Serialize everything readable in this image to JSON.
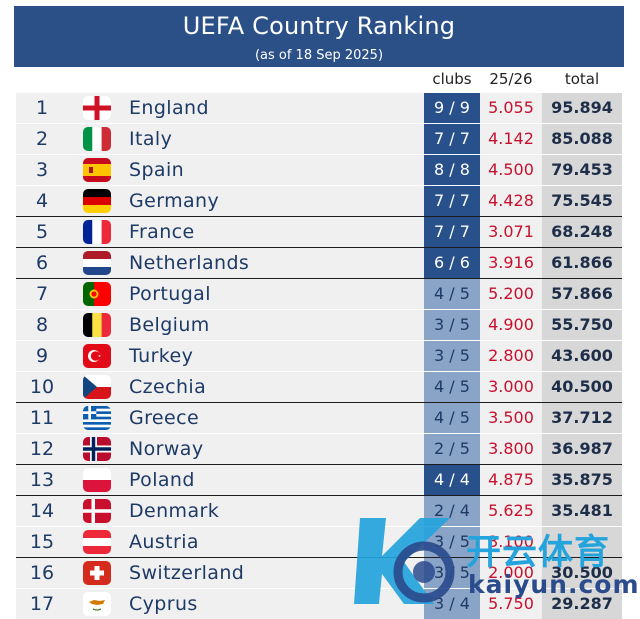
{
  "header": {
    "title": "UEFA Country Ranking",
    "subtitle": "(as of 18 Sep 2025)"
  },
  "columns": {
    "clubs": "clubs",
    "season": "25/26",
    "total": "total"
  },
  "rows": [
    {
      "rank": "1",
      "country": "England",
      "clubs": "9 / 9",
      "season": "5.055",
      "total": "95.894",
      "flag_icon": "england-flag-icon"
    },
    {
      "rank": "2",
      "country": "Italy",
      "clubs": "7 / 7",
      "season": "4.142",
      "total": "85.088",
      "flag_icon": "italy-flag-icon"
    },
    {
      "rank": "3",
      "country": "Spain",
      "clubs": "8 / 8",
      "season": "4.500",
      "total": "79.453",
      "flag_icon": "spain-flag-icon"
    },
    {
      "rank": "4",
      "country": "Germany",
      "clubs": "7 / 7",
      "season": "4.428",
      "total": "75.545",
      "flag_icon": "germany-flag-icon"
    },
    {
      "rank": "5",
      "country": "France",
      "clubs": "7 / 7",
      "season": "3.071",
      "total": "68.248",
      "flag_icon": "france-flag-icon"
    },
    {
      "rank": "6",
      "country": "Netherlands",
      "clubs": "6 / 6",
      "season": "3.916",
      "total": "61.866",
      "flag_icon": "netherlands-flag-icon"
    },
    {
      "rank": "7",
      "country": "Portugal",
      "clubs": "4 / 5",
      "season": "5.200",
      "total": "57.866",
      "flag_icon": "portugal-flag-icon"
    },
    {
      "rank": "8",
      "country": "Belgium",
      "clubs": "3 / 5",
      "season": "4.900",
      "total": "55.750",
      "flag_icon": "belgium-flag-icon"
    },
    {
      "rank": "9",
      "country": "Turkey",
      "clubs": "3 / 5",
      "season": "2.800",
      "total": "43.600",
      "flag_icon": "turkey-flag-icon"
    },
    {
      "rank": "10",
      "country": "Czechia",
      "clubs": "4 / 5",
      "season": "3.000",
      "total": "40.500",
      "flag_icon": "czechia-flag-icon"
    },
    {
      "rank": "11",
      "country": "Greece",
      "clubs": "4 / 5",
      "season": "3.500",
      "total": "37.712",
      "flag_icon": "greece-flag-icon"
    },
    {
      "rank": "12",
      "country": "Norway",
      "clubs": "2 / 5",
      "season": "3.800",
      "total": "36.987",
      "flag_icon": "norway-flag-icon"
    },
    {
      "rank": "13",
      "country": "Poland",
      "clubs": "4 / 4",
      "season": "4.875",
      "total": "35.875",
      "flag_icon": "poland-flag-icon"
    },
    {
      "rank": "14",
      "country": "Denmark",
      "clubs": "2 / 4",
      "season": "5.625",
      "total": "35.481",
      "flag_icon": "denmark-flag-icon"
    },
    {
      "rank": "15",
      "country": "Austria",
      "clubs": "3 / 5",
      "season": "3.100",
      "total": "",
      "flag_icon": "austria-flag-icon"
    },
    {
      "rank": "16",
      "country": "Switzerland",
      "clubs": "3 / 5",
      "season": "2.000",
      "total": "30.500",
      "flag_icon": "switzerland-flag-icon"
    },
    {
      "rank": "17",
      "country": "Cyprus",
      "clubs": "3 / 4",
      "season": "5.750",
      "total": "29.287",
      "flag_icon": "cyprus-flag-icon"
    }
  ],
  "watermark": {
    "chinese": "开云体育",
    "latin": "kaiyun.com"
  },
  "colors": {
    "banner": "#2b5088",
    "clubs_full": "#28508a",
    "clubs_partial": "#8aa4c8",
    "season_value": "#c8102e",
    "total_bg": "#d7d7d7"
  }
}
